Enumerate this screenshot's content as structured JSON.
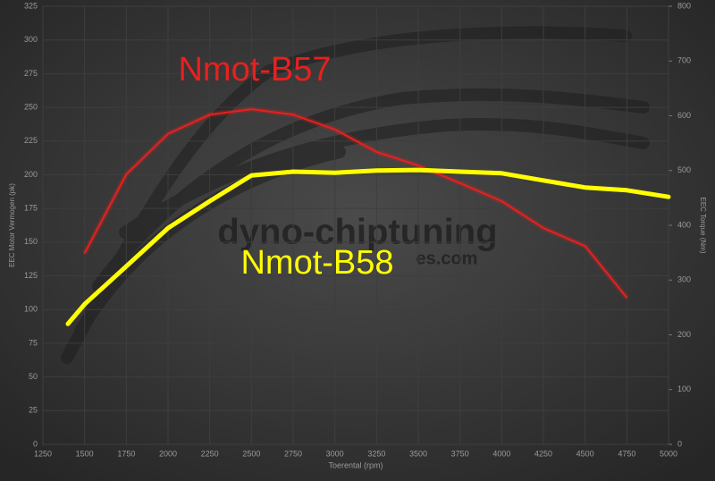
{
  "chart_data": {
    "type": "line",
    "xlabel": "Toerental (rpm)",
    "ylabel": "EEC Motor Vermogen (pk)",
    "y2label": "EEC Torque (Nm)",
    "watermark": [
      "dyno-chiptuning",
      "es.com"
    ],
    "xlim": [
      1250,
      5000
    ],
    "xticks": [
      1250,
      1500,
      1750,
      2000,
      2250,
      2500,
      2750,
      3000,
      3250,
      3500,
      3750,
      4000,
      4250,
      4500,
      4750,
      5000
    ],
    "ylim": [
      0,
      325
    ],
    "yticks": [
      0,
      25,
      50,
      75,
      100,
      125,
      150,
      175,
      200,
      225,
      250,
      275,
      300,
      325
    ],
    "y2lim": [
      0,
      800
    ],
    "y2ticks": [
      0,
      100,
      200,
      300,
      400,
      500,
      600,
      700,
      800
    ],
    "grid": true,
    "series": [
      {
        "name": "Nmot-B57",
        "color": "#e8201e",
        "axis": "y2",
        "x": [
          1500,
          1750,
          2000,
          2250,
          2500,
          2750,
          3000,
          3250,
          3500,
          3750,
          4000,
          4250,
          4500,
          4750
        ],
        "values": [
          349,
          493,
          567,
          602,
          612,
          602,
          575,
          534,
          509,
          477,
          444,
          395,
          362,
          268
        ]
      },
      {
        "name": "Nmot-B58",
        "color": "#ffff00",
        "axis": "y2",
        "x": [
          1400,
          1500,
          1750,
          2000,
          2250,
          2500,
          2750,
          3000,
          3250,
          3500,
          3750,
          4000,
          4250,
          4500,
          4750,
          5000
        ],
        "values": [
          220,
          256,
          325,
          395,
          444,
          491,
          498,
          496,
          500,
          501,
          498,
          495,
          482,
          469,
          464,
          452
        ]
      }
    ]
  }
}
